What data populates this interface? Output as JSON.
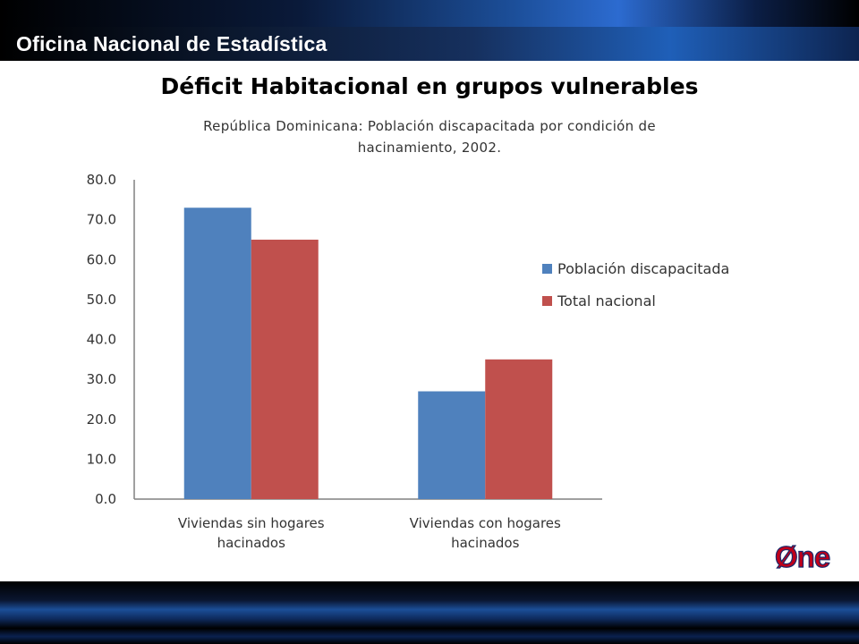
{
  "header": {
    "title": "Oficina Nacional de Estadística"
  },
  "slide": {
    "title": "Déficit Habitacional en grupos vulnerables"
  },
  "logo": {
    "text": "Øne"
  },
  "colors": {
    "series1": "#4f81bd",
    "series2": "#c0504d",
    "text": "#333333",
    "axis": "#808080"
  },
  "chart_data": {
    "type": "bar",
    "title_lines": [
      "República Dominicana: Población discapacitada por condición de",
      "hacinamiento, 2002."
    ],
    "categories": [
      [
        "Viviendas sin hogares",
        "hacinados"
      ],
      [
        "Viviendas con hogares",
        "hacinados"
      ]
    ],
    "series": [
      {
        "name": "Población discapacitada",
        "values": [
          73.0,
          27.0
        ],
        "color": "#4f81bd"
      },
      {
        "name": "Total nacional",
        "values": [
          65.0,
          35.0
        ],
        "color": "#c0504d"
      }
    ],
    "yticks": [
      "0.0",
      "10.0",
      "20.0",
      "30.0",
      "40.0",
      "50.0",
      "60.0",
      "70.0",
      "80.0"
    ],
    "ylim": [
      0,
      80
    ],
    "grid": false,
    "legend": "right"
  }
}
